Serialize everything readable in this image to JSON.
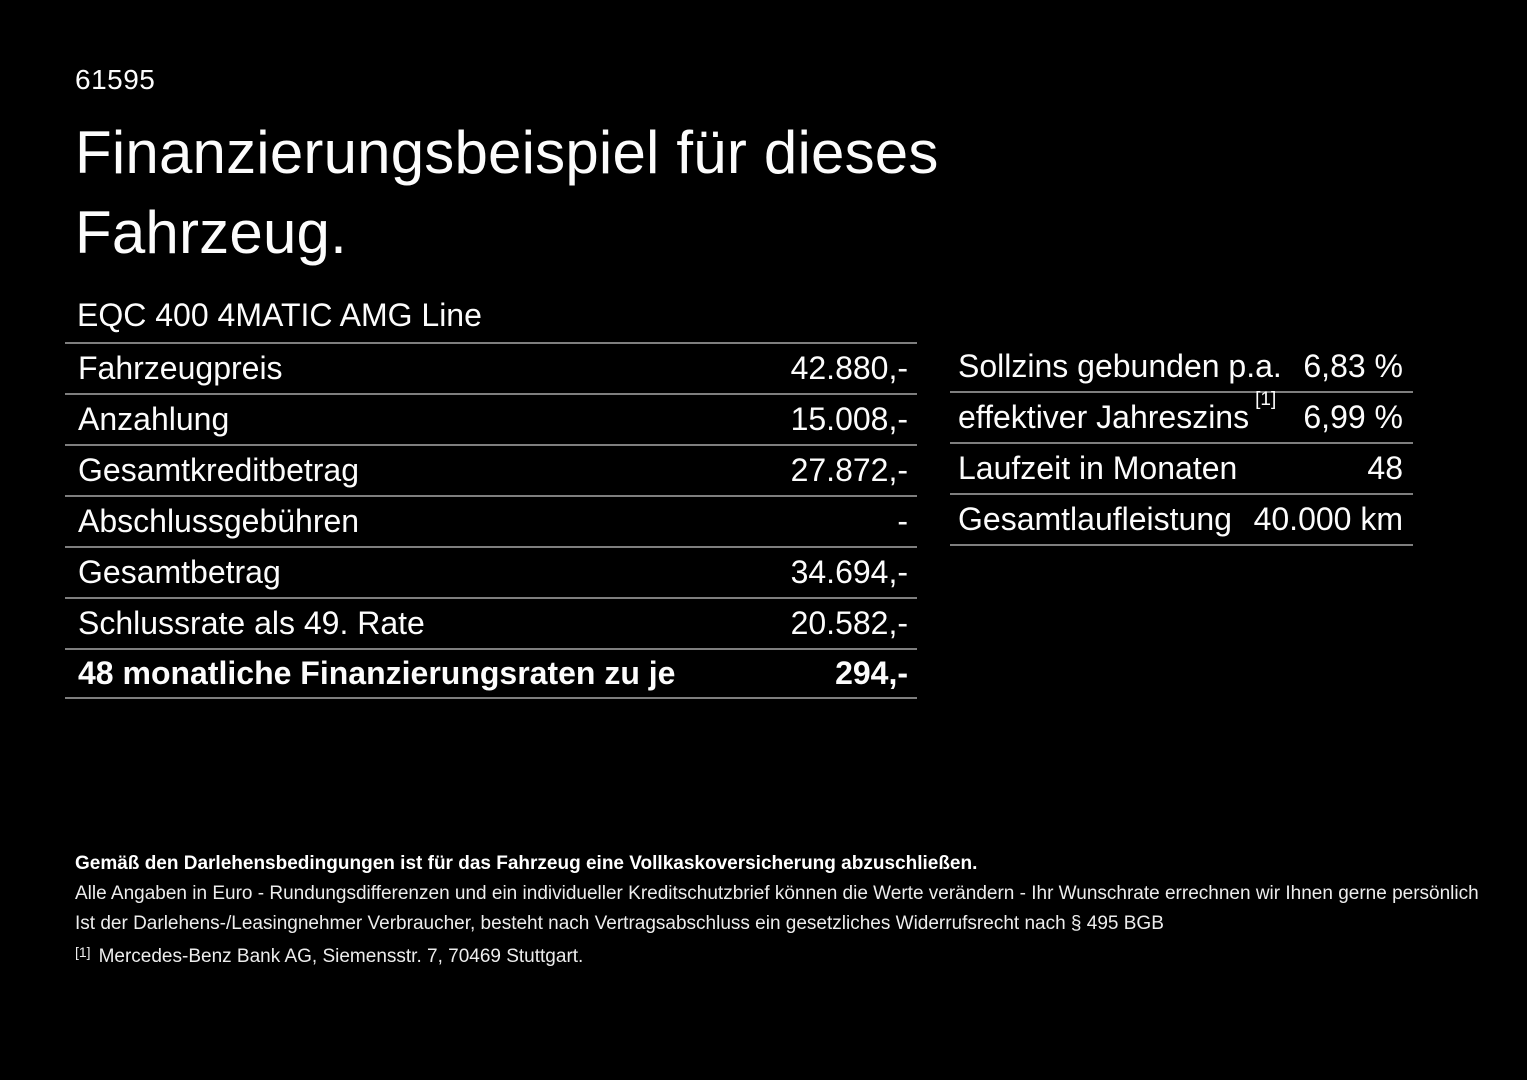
{
  "page": {
    "background_color": "#000000",
    "text_color": "#fcfcfc",
    "divider_color": "#7e7e7e"
  },
  "doc_number": "61595",
  "title": "Finanzierungsbeispiel für dieses Fahrzeug.",
  "vehicle_model": "EQC 400 4MATIC AMG Line",
  "finance_table": {
    "rows": [
      {
        "label": "Fahrzeugpreis",
        "value": "42.880,-"
      },
      {
        "label": "Anzahlung",
        "value": "15.008,-"
      },
      {
        "label": "Gesamtkreditbetrag",
        "value": "27.872,-"
      },
      {
        "label": "Abschlussgebühren",
        "value": "-"
      },
      {
        "label": "Gesamtbetrag",
        "value": "34.694,-"
      },
      {
        "label": "Schlussrate als 49. Rate",
        "value": "20.582,-"
      },
      {
        "label": "48 monatliche Finanzierungsraten zu je",
        "value": "294,-",
        "bold": true
      }
    ]
  },
  "conditions_table": {
    "rows": [
      {
        "label": "Sollzins gebunden p.a.",
        "value": "6,83 %"
      },
      {
        "label": "effektiver Jahreszins",
        "superscript": "[1]",
        "value": "6,99 %"
      },
      {
        "label": "Laufzeit in Monaten",
        "value": "48"
      },
      {
        "label": "Gesamtlaufleistung",
        "value": "40.000 km"
      }
    ]
  },
  "footer": {
    "bold_note": "Gemäß den Darlehensbedingungen ist für das Fahrzeug eine Vollkaskoversicherung abzuschließen.",
    "note_1": "Alle Angaben in Euro - Rundungsdifferenzen und ein individueller Kreditschutzbrief können die Werte verändern - Ihr Wunschrate errechnen wir Ihnen gerne persönlich",
    "note_2": "Ist der Darlehens-/Leasingnehmer Verbraucher, besteht nach Vertragsabschluss ein gesetzliches Widerrufsrecht nach § 495 BGB",
    "footnote_marker": "[1]",
    "footnote_text": "Mercedes-Benz Bank AG, Siemensstr. 7, 70469 Stuttgart."
  }
}
